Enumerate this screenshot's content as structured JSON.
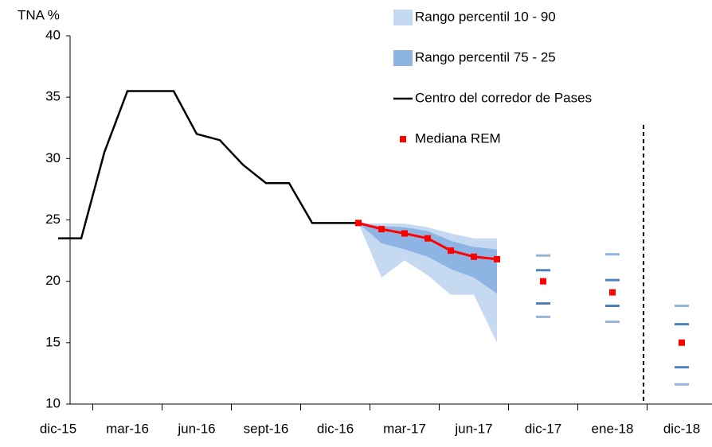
{
  "chart_data": {
    "type": "line",
    "y_axis_label": "TNA %",
    "categories": [
      "dic-15",
      null,
      null,
      "mar-16",
      null,
      null,
      "jun-16",
      null,
      null,
      "sept-16",
      null,
      null,
      "dic-16",
      null,
      null,
      "mar-17",
      null,
      null,
      "jun-17",
      null,
      null,
      "dic-17",
      null,
      null,
      "ene-18",
      null,
      null,
      "dic-18"
    ],
    "ylim": [
      10,
      40
    ],
    "yticks": [
      10,
      15,
      20,
      25,
      30,
      35,
      40
    ],
    "series": [
      {
        "name": "Rango percentil 10 - 90",
        "kind": "range",
        "color": "#c5d9f1",
        "marker_color": "#95b3d7",
        "upper": [
          null,
          null,
          null,
          null,
          null,
          null,
          null,
          null,
          null,
          null,
          null,
          null,
          null,
          24.75,
          24.7,
          24.7,
          24.4,
          23.9,
          23.5,
          23.5,
          null,
          22.1,
          null,
          null,
          22.2,
          null,
          null,
          18.0
        ],
        "lower": [
          null,
          null,
          null,
          null,
          null,
          null,
          null,
          null,
          null,
          null,
          null,
          null,
          null,
          24.75,
          20.3,
          21.7,
          20.5,
          18.9,
          18.9,
          15.0,
          null,
          17.1,
          null,
          null,
          16.7,
          null,
          null,
          11.6
        ]
      },
      {
        "name": "Rango percentil 75 - 25",
        "kind": "range",
        "color": "#8db4e2",
        "marker_color": "#4f81bd",
        "upper": [
          null,
          null,
          null,
          null,
          null,
          null,
          null,
          null,
          null,
          null,
          null,
          null,
          null,
          24.75,
          24.5,
          24.4,
          24.1,
          23.3,
          22.8,
          22.6,
          null,
          20.9,
          null,
          null,
          20.1,
          null,
          null,
          16.5
        ],
        "lower": [
          null,
          null,
          null,
          null,
          null,
          null,
          null,
          null,
          null,
          null,
          null,
          null,
          null,
          24.75,
          23.1,
          22.6,
          22.0,
          21.0,
          20.3,
          19.0,
          null,
          18.2,
          null,
          null,
          18.0,
          null,
          null,
          13.0
        ]
      },
      {
        "name": "Centro del corredor de Pases",
        "kind": "line",
        "color": "#000000",
        "values": [
          23.5,
          23.5,
          30.5,
          35.5,
          35.5,
          35.5,
          32,
          31.5,
          29.5,
          28,
          28,
          24.75,
          24.75,
          24.75,
          null,
          null,
          null,
          null,
          null,
          null,
          null,
          null,
          null,
          null,
          null,
          null,
          null,
          null
        ]
      },
      {
        "name": "Mediana REM",
        "kind": "line-marker",
        "color": "#ff0000",
        "values": [
          null,
          null,
          null,
          null,
          null,
          null,
          null,
          null,
          null,
          null,
          null,
          null,
          null,
          24.75,
          24.25,
          23.9,
          23.5,
          22.5,
          22,
          21.8,
          null,
          20.0,
          null,
          null,
          19.1,
          null,
          null,
          15.0
        ]
      }
    ]
  }
}
